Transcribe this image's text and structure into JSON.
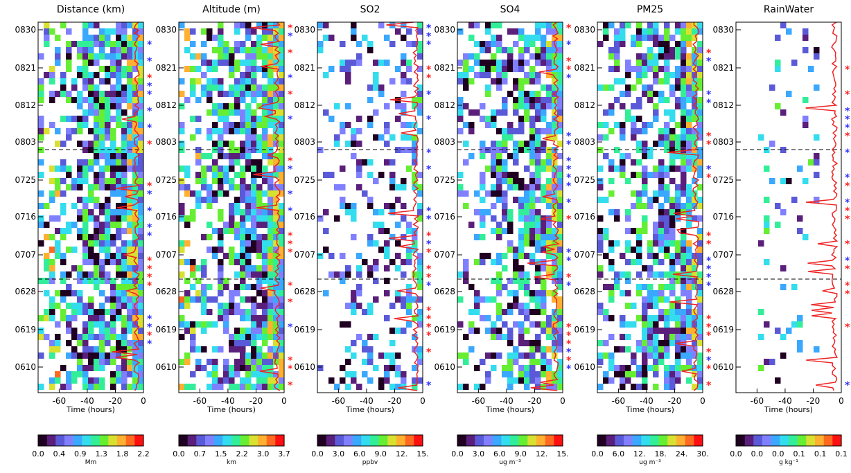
{
  "time_axis_label": "Time (hours)",
  "x_tick_labels": [
    "-60",
    "-40",
    "-20",
    "0"
  ],
  "x_ticks": [
    -60,
    -40,
    -20,
    0
  ],
  "xlim": [
    -75,
    0
  ],
  "y_tick_labels": [
    "0830",
    "0821",
    "0812",
    "0803",
    "0725",
    "0716",
    "0707",
    "0628",
    "0619",
    "0610"
  ],
  "dashed_lines_at": [
    "0801",
    "0702"
  ],
  "colormap": [
    "#200020",
    "#5a1f7a",
    "#5a5ad8",
    "#8080ff",
    "#3aa8ff",
    "#33ddee",
    "#33ee99",
    "#66ee33",
    "#d8e030",
    "#ffb030",
    "#ff6a20",
    "#ff1010"
  ],
  "line_color": "#ee2222",
  "marker_colors": {
    "blue": "#3333ff",
    "red": "#ff2222"
  },
  "chart_data": [
    {
      "type": "heatmap",
      "title": "Distance (km)",
      "colorbar_ticks": [
        "0.0",
        "0.4",
        "0.9",
        "1.3",
        "1.8",
        "2.2"
      ],
      "colorbar_unit": "Mm",
      "colorbar_range": [
        0.0,
        2.2
      ]
    },
    {
      "type": "heatmap",
      "title": "Altitude (m)",
      "colorbar_ticks": [
        "0.0",
        "0.7",
        "1.5",
        "2.2",
        "3.0",
        "3.7"
      ],
      "colorbar_unit": "km",
      "colorbar_range": [
        0.0,
        3.7
      ]
    },
    {
      "type": "heatmap",
      "title": "SO2",
      "colorbar_ticks": [
        "0.0",
        "3.0",
        "6.0",
        "9.0",
        "12.",
        "15."
      ],
      "colorbar_unit": "ppbv",
      "colorbar_range": [
        0.0,
        15.0
      ]
    },
    {
      "type": "heatmap",
      "title": "SO4",
      "colorbar_ticks": [
        "0.0",
        "3.0",
        "6.0",
        "9.0",
        "12.",
        "15."
      ],
      "colorbar_unit": "ug m⁻³",
      "colorbar_range": [
        0.0,
        15.0
      ]
    },
    {
      "type": "heatmap",
      "title": "PM25",
      "colorbar_ticks": [
        "0.0",
        "6.0",
        "12.",
        "18.",
        "24.",
        "30."
      ],
      "colorbar_unit": "ug m⁻³",
      "colorbar_range": [
        0.0,
        30.0
      ]
    },
    {
      "type": "heatmap",
      "title": "RainWater",
      "colorbar_ticks": [
        "0.0",
        "0.0",
        "0.0",
        "0.1",
        "0.1",
        "0.1"
      ],
      "colorbar_unit": "g kg⁻¹",
      "colorbar_range": [
        0.0,
        0.1
      ]
    }
  ]
}
